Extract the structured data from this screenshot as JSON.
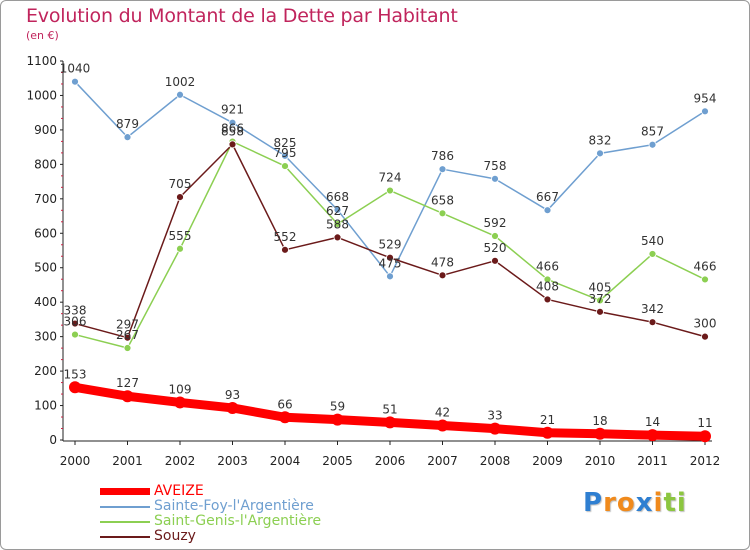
{
  "chart_data": {
    "type": "line",
    "title": "Evolution du Montant de la Dette par Habitant",
    "subtitle": "(en €)",
    "x": [
      "2000",
      "2001",
      "2002",
      "2003",
      "2004",
      "2005",
      "2006",
      "2007",
      "2008",
      "2009",
      "2010",
      "2011",
      "2012"
    ],
    "y_ticks": [
      "0",
      "100",
      "200",
      "300",
      "400",
      "500",
      "600",
      "700",
      "800",
      "900",
      "1000",
      "1100"
    ],
    "ylim": [
      0,
      1100
    ],
    "grid": false,
    "legend_position": "bottom-left",
    "series": [
      {
        "name": "AVEIZE",
        "color": "#ff0000",
        "values": [
          153,
          127,
          109,
          93,
          66,
          59,
          51,
          42,
          33,
          21,
          18,
          14,
          11
        ]
      },
      {
        "name": "Sainte-Foy-l'Argentière",
        "color": "#6f9fd0",
        "values": [
          1040,
          879,
          1002,
          921,
          825,
          668,
          475,
          786,
          758,
          667,
          832,
          857,
          954
        ]
      },
      {
        "name": "Saint-Genis-l'Argentière",
        "color": "#8ccf52",
        "values": [
          306,
          267,
          555,
          866,
          795,
          627,
          724,
          658,
          592,
          466,
          405,
          540,
          466
        ]
      },
      {
        "name": "Souzy",
        "color": "#6b1a1a",
        "values": [
          338,
          297,
          705,
          858,
          552,
          588,
          529,
          478,
          520,
          408,
          372,
          342,
          300
        ]
      }
    ]
  },
  "logo": {
    "letters": [
      "P",
      "r",
      "o",
      "x",
      "i",
      "t",
      "i"
    ],
    "colors": [
      "#2f7fd1",
      "#f08a1c",
      "#f08a1c",
      "#2f7fd1",
      "#f08a1c",
      "#8cc63f",
      "#8cc63f"
    ]
  }
}
